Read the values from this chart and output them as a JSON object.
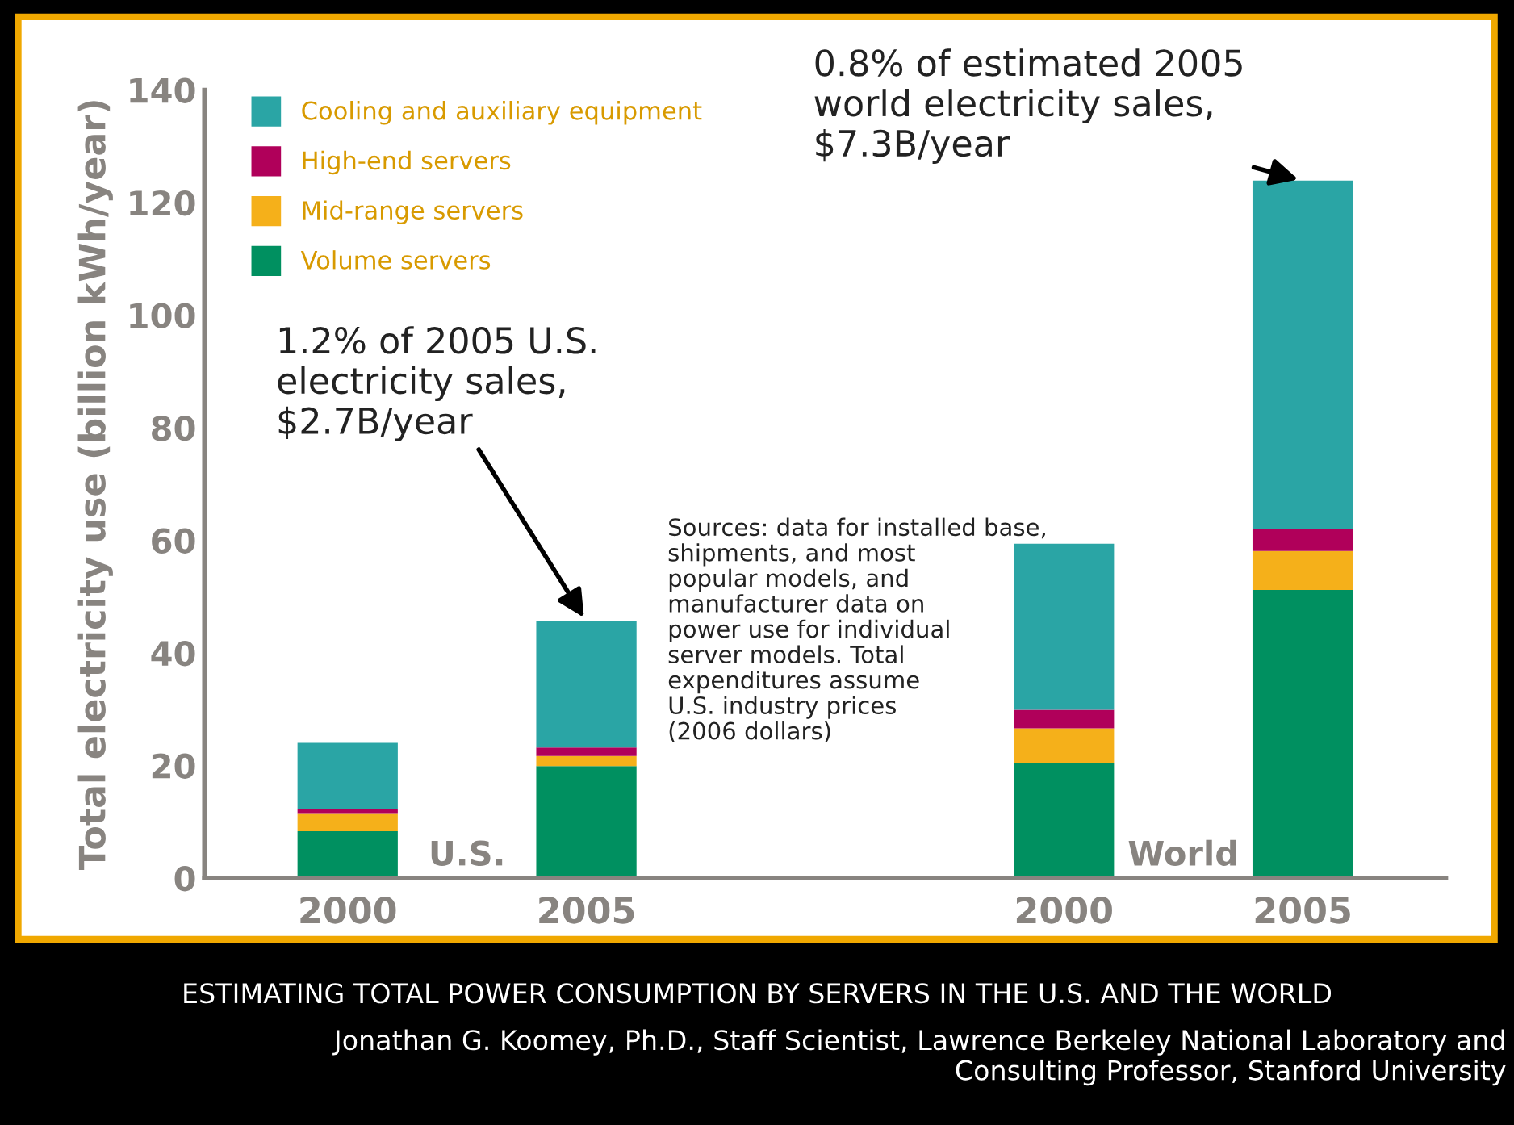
{
  "chart_data": {
    "type": "bar",
    "stacked": true,
    "title": "ESTIMATING TOTAL POWER CONSUMPTION BY SERVERS IN THE U.S. AND THE WORLD",
    "subtitle": "Jonathan G. Koomey, Ph.D., Staff Scientist, Lawrence Berkeley National Laboratory and\nConsulting Professor, Stanford University",
    "ylabel": "Total electricity use (billion kWh/year)",
    "categories": [
      "2000",
      "2005",
      null,
      "2000",
      "2005"
    ],
    "series": [
      {
        "name": "Volume servers",
        "color": "#009060",
        "values": [
          8.3,
          19.9,
          null,
          20.4,
          51.2
        ]
      },
      {
        "name": "Mid-range servers",
        "color": "#f5b01a",
        "values": [
          3.1,
          1.8,
          null,
          6.2,
          6.9
        ]
      },
      {
        "name": "High-end servers",
        "color": "#b0005a",
        "values": [
          0.8,
          1.5,
          null,
          3.3,
          3.9
        ]
      },
      {
        "name": "Cooling and auxiliary equipment",
        "color": "#2aa5a5",
        "values": [
          11.8,
          22.4,
          null,
          29.5,
          61.9
        ]
      }
    ],
    "ylim": [
      0,
      140
    ],
    "yticks": [
      0,
      20,
      40,
      60,
      80,
      100,
      120,
      140
    ],
    "legend": "top left",
    "grid": false,
    "annotations": [
      "1.2% of 2005 U.S.\nelectricity sales,\n$2.7B/year",
      "0.8% of estimated 2005\nworld electricity sales,\n$7.3B/year",
      "U.S.",
      "World",
      "Sources: data for installed base,\nshipments, and most\npopular models, and\nmanufacturer data on\npower use for individual\nserver models. Total\nexpenditures assume\nU.S. industry prices\n(2006 dollars)"
    ]
  }
}
